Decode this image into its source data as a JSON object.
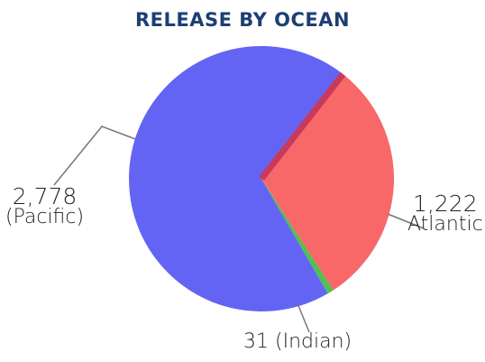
{
  "chart_data": {
    "type": "pie",
    "title": "RELEASE BY OCEAN",
    "slices": [
      {
        "label": "Pacific",
        "value": 2778,
        "display_value": "2,778",
        "display_name": "(Pacific)",
        "color": "#6464f4"
      },
      {
        "label": "Atlantic",
        "value": 1222,
        "display_value": "1,222",
        "display_name": "Atlantic",
        "color": "#f86868"
      },
      {
        "label": "Indian",
        "value": 31,
        "display_value": "31",
        "display_name": "(Indian)",
        "color": "#4ec24e"
      }
    ]
  },
  "colors": {
    "title": "#1c3f73",
    "pacific": "#6464f4",
    "atlantic": "#f86868",
    "indian": "#4ec24e",
    "edge_dark": "#c83a5a",
    "leader": "#777777"
  }
}
